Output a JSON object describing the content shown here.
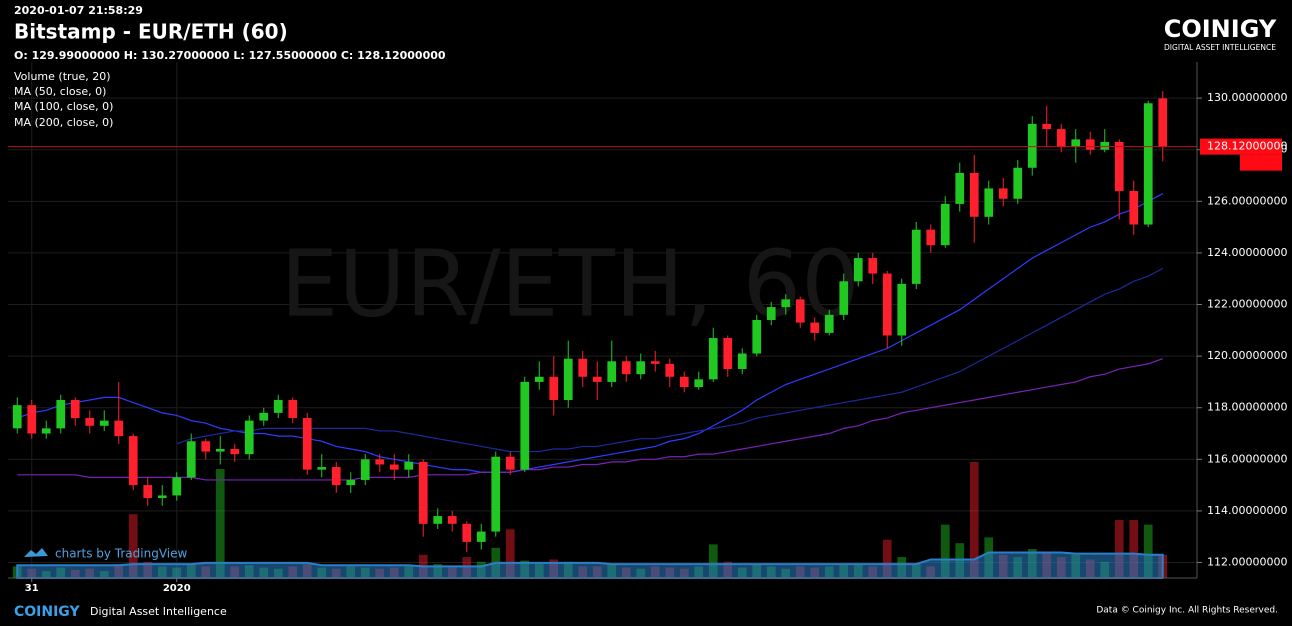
{
  "header": {
    "timestamp": "2020-01-07 21:58:29",
    "title": "Bitstamp - EUR/ETH (60)",
    "ohlc_summary": "O: 129.99000000 H: 130.27000000 L: 127.55000000 C: 128.12000000",
    "logo": "COINIGY",
    "tagline": "DIGITAL ASSET INTELLIGENCE"
  },
  "footer": {
    "logo": "COINIGY",
    "tagline": "Digital Asset Intelligence",
    "copyright": "Data © Coinigy Inc.  All Rights Reserved.",
    "attribution": "charts by TradingView"
  },
  "chart_data": {
    "type": "candlestick",
    "watermark": "EUR/ETH, 60",
    "categories": [
      null,
      "31",
      null,
      null,
      null,
      null,
      null,
      null,
      null,
      null,
      null,
      "2020",
      null,
      null,
      null,
      null,
      null,
      null,
      null,
      null,
      null,
      null,
      null,
      null,
      null,
      null,
      null,
      null,
      null,
      null,
      null,
      null,
      null,
      null,
      null,
      null,
      null,
      null,
      null,
      null,
      null,
      null,
      null,
      null,
      null,
      null,
      null,
      null,
      null,
      null,
      null,
      null,
      null,
      null,
      null,
      null,
      null,
      null,
      null,
      null,
      null,
      null,
      null,
      null,
      null,
      null,
      null,
      null,
      null,
      null,
      null,
      null,
      null,
      null,
      null,
      null,
      null,
      null,
      null,
      null
    ],
    "open": [
      117.2,
      118.1,
      117,
      117.2,
      118.3,
      117.6,
      117.3,
      117.5,
      116.9,
      115,
      114.5,
      114.6,
      115.3,
      116.7,
      116.3,
      116.4,
      116.2,
      117.5,
      117.8,
      118.3,
      117.6,
      115.6,
      115.7,
      115,
      115.2,
      116,
      115.8,
      115.6,
      115.9,
      113.5,
      113.8,
      113.5,
      112.8,
      113.2,
      116.1,
      115.6,
      119,
      119.2,
      118.3,
      119.9,
      119.2,
      119,
      119.8,
      119.3,
      119.8,
      119.7,
      119.2,
      118.8,
      119.1,
      120.7,
      119.5,
      120.1,
      121.4,
      121.9,
      122.2,
      121.3,
      120.9,
      121.6,
      122.9,
      123.8,
      123.2,
      120.8,
      122.8,
      124.9,
      124.3,
      125.9,
      127.1,
      125.4,
      126.5,
      126.1,
      127.3,
      129,
      128.8,
      128.1,
      128.4,
      128,
      128.3,
      126.4,
      125.1,
      129.99
    ],
    "high": [
      118.4,
      118.3,
      117.5,
      118.5,
      118.4,
      117.9,
      117.9,
      119,
      117,
      115.3,
      115,
      115.5,
      117,
      116.8,
      116.9,
      116.6,
      117.7,
      118,
      118.5,
      118.4,
      117.8,
      116.2,
      115.9,
      115.5,
      116.2,
      116.2,
      116.2,
      116.2,
      116,
      114.1,
      114,
      113.6,
      113.5,
      116.3,
      116.3,
      119.2,
      119.8,
      120,
      120.6,
      120.2,
      119.8,
      120.6,
      120,
      120.1,
      120.2,
      119.9,
      119.4,
      119.4,
      121.1,
      120.8,
      120.3,
      121.6,
      122.1,
      122.4,
      122.3,
      121.5,
      121.8,
      123.2,
      124,
      124,
      123.3,
      123,
      125.2,
      125.1,
      126.2,
      127.5,
      127.8,
      126.8,
      126.9,
      127.6,
      129.3,
      129.7,
      129,
      128.8,
      128.7,
      128.8,
      128.4,
      126.8,
      129.9,
      130.27
    ],
    "low": [
      117,
      116.8,
      116.8,
      117,
      117.3,
      117,
      117.1,
      116.6,
      114.8,
      114.2,
      114.2,
      114.4,
      115.2,
      116,
      115.8,
      115.9,
      116,
      117.3,
      117.6,
      117.4,
      115.4,
      115.3,
      114.7,
      114.7,
      115,
      115.5,
      115.2,
      115.3,
      113,
      113.3,
      113.2,
      112.4,
      112.5,
      113,
      115.4,
      115.5,
      118.7,
      117.7,
      118,
      118.8,
      118.3,
      118.8,
      119,
      119.1,
      119.4,
      118.8,
      118.6,
      118.7,
      119,
      119.2,
      119.3,
      120,
      121.2,
      121.6,
      121.1,
      120.6,
      120.8,
      121.4,
      122.7,
      122.8,
      120.3,
      120.4,
      122.6,
      124,
      124.2,
      125.6,
      124.4,
      125.1,
      125.8,
      125.9,
      127,
      128.1,
      127.9,
      127.5,
      127.8,
      127.9,
      125.3,
      124.7,
      125,
      127.55
    ],
    "close": [
      118.1,
      117,
      117.2,
      118.3,
      117.6,
      117.3,
      117.5,
      116.9,
      115,
      114.5,
      114.6,
      115.3,
      116.7,
      116.3,
      116.4,
      116.2,
      117.5,
      117.8,
      118.3,
      117.6,
      115.6,
      115.7,
      115,
      115.2,
      116,
      115.8,
      115.6,
      115.9,
      113.5,
      113.8,
      113.5,
      112.8,
      113.2,
      116.1,
      115.6,
      119,
      119.2,
      118.3,
      119.9,
      119.2,
      119,
      119.8,
      119.3,
      119.8,
      119.7,
      119.2,
      118.8,
      119.1,
      120.7,
      119.5,
      120.1,
      121.4,
      121.9,
      122.2,
      121.3,
      120.9,
      121.6,
      122.9,
      123.8,
      123.2,
      120.8,
      122.8,
      124.9,
      124.3,
      125.9,
      127.1,
      125.4,
      126.5,
      126.1,
      127.3,
      129,
      128.8,
      128.1,
      128.4,
      128,
      128.3,
      126.4,
      125.1,
      129.8,
      128.12
    ],
    "up_color": "#22c822",
    "down_color": "#ff1f2d",
    "volume": {
      "name": "Volume (true, 20)",
      "lim": [
        0,
        100
      ],
      "ma_color": "#2a7fc8",
      "values": [
        10,
        8,
        6,
        9,
        7,
        8,
        6,
        12,
        55,
        14,
        10,
        9,
        12,
        10,
        94,
        10,
        11,
        9,
        8,
        10,
        12,
        9,
        8,
        10,
        9,
        8,
        9,
        10,
        20,
        12,
        9,
        18,
        14,
        26,
        42,
        15,
        12,
        16,
        14,
        10,
        10,
        12,
        9,
        8,
        10,
        9,
        8,
        10,
        29,
        14,
        9,
        12,
        10,
        8,
        10,
        9,
        10,
        11,
        12,
        10,
        33,
        18,
        12,
        10,
        46,
        30,
        100,
        35,
        20,
        18,
        25,
        22,
        18,
        20,
        16,
        14,
        50,
        50,
        46,
        20
      ],
      "ma": [
        11,
        11,
        11,
        11,
        11,
        11,
        11,
        11,
        12,
        12,
        12,
        12,
        12,
        13,
        13,
        13,
        13,
        13,
        13,
        13,
        13,
        11,
        11,
        11,
        11,
        11,
        11,
        11,
        10,
        10,
        10,
        10,
        10,
        13,
        13,
        13,
        13,
        13,
        13,
        13,
        13,
        12,
        12,
        12,
        12,
        12,
        12,
        12,
        12,
        12,
        12,
        12,
        12,
        12,
        12,
        12,
        12,
        12,
        12,
        12,
        12,
        12,
        12,
        16,
        16,
        16,
        16,
        22,
        22,
        22,
        22,
        22,
        22,
        21,
        21,
        21,
        21,
        21,
        20,
        20
      ]
    },
    "series": [
      {
        "name": "MA (50, close, 0)",
        "color": "#2e3cff",
        "values": [
          117.6,
          117.8,
          117.9,
          118.1,
          118.2,
          118.3,
          118.4,
          118.4,
          118.2,
          118.0,
          117.8,
          117.7,
          117.5,
          117.4,
          117.2,
          117.1,
          117.0,
          117.0,
          116.9,
          116.9,
          116.8,
          116.7,
          116.5,
          116.4,
          116.3,
          116.1,
          116.0,
          115.9,
          115.8,
          115.7,
          115.6,
          115.6,
          115.5,
          115.5,
          115.5,
          115.6,
          115.7,
          115.8,
          115.9,
          116.0,
          116.1,
          116.2,
          116.3,
          116.4,
          116.5,
          116.7,
          116.8,
          117.0,
          117.3,
          117.6,
          117.9,
          118.3,
          118.6,
          118.9,
          119.1,
          119.3,
          119.5,
          119.7,
          119.9,
          120.1,
          120.3,
          120.6,
          120.9,
          121.2,
          121.5,
          121.8,
          122.2,
          122.6,
          123.0,
          123.4,
          123.8,
          124.1,
          124.4,
          124.7,
          125.0,
          125.2,
          125.5,
          125.7,
          126.0,
          126.3
        ]
      },
      {
        "name": "MA (100, close, 0)",
        "color": "#1c2a9c",
        "values": [
          null,
          null,
          null,
          null,
          null,
          null,
          null,
          null,
          null,
          null,
          null,
          116.6,
          116.8,
          116.9,
          117.0,
          117.1,
          117.1,
          117.2,
          117.2,
          117.2,
          117.2,
          117.2,
          117.2,
          117.2,
          117.2,
          117.1,
          117.1,
          117.0,
          116.9,
          116.8,
          116.7,
          116.6,
          116.5,
          116.4,
          116.3,
          116.3,
          116.3,
          116.4,
          116.4,
          116.5,
          116.5,
          116.6,
          116.7,
          116.8,
          116.8,
          116.9,
          117.0,
          117.1,
          117.2,
          117.3,
          117.4,
          117.6,
          117.7,
          117.8,
          117.9,
          118.0,
          118.1,
          118.2,
          118.3,
          118.4,
          118.5,
          118.6,
          118.8,
          119.0,
          119.2,
          119.4,
          119.7,
          120.0,
          120.3,
          120.6,
          120.9,
          121.2,
          121.5,
          121.8,
          122.1,
          122.4,
          122.6,
          122.9,
          123.1,
          123.4
        ]
      },
      {
        "name": "MA (200, close, 0)",
        "color": "#7a22b8",
        "values": [
          115.4,
          115.4,
          115.4,
          115.4,
          115.4,
          115.3,
          115.3,
          115.3,
          115.3,
          115.3,
          115.3,
          115.3,
          115.3,
          115.2,
          115.2,
          115.2,
          115.2,
          115.2,
          115.2,
          115.2,
          115.2,
          115.2,
          115.2,
          115.2,
          115.3,
          115.3,
          115.3,
          115.3,
          115.4,
          115.4,
          115.4,
          115.4,
          115.5,
          115.5,
          115.5,
          115.6,
          115.6,
          115.7,
          115.7,
          115.8,
          115.8,
          115.9,
          115.9,
          116.0,
          116.0,
          116.1,
          116.1,
          116.2,
          116.2,
          116.3,
          116.4,
          116.5,
          116.6,
          116.7,
          116.8,
          116.9,
          117.0,
          117.2,
          117.3,
          117.5,
          117.6,
          117.8,
          117.9,
          118.0,
          118.1,
          118.2,
          118.3,
          118.4,
          118.5,
          118.6,
          118.7,
          118.8,
          118.9,
          119.0,
          119.2,
          119.3,
          119.5,
          119.6,
          119.7,
          119.9
        ]
      }
    ],
    "last_price": {
      "value": 128.12,
      "label": "128.12000000"
    },
    "ylim": [
      111.4,
      131.4
    ],
    "yticks": [
      {
        "value": 112,
        "label": "112.00000000"
      },
      {
        "value": 114,
        "label": "114.00000000"
      },
      {
        "value": 116,
        "label": "116.00000000"
      },
      {
        "value": 118,
        "label": "118.00000000"
      },
      {
        "value": 120,
        "label": "120.00000000"
      },
      {
        "value": 122,
        "label": "122.00000000"
      },
      {
        "value": 124,
        "label": "124.00000000"
      },
      {
        "value": 126,
        "label": "126.00000000"
      },
      {
        "value": 128,
        "label": "128.00000000"
      },
      {
        "value": 130,
        "label": "130.00000000"
      }
    ],
    "grid": true
  }
}
